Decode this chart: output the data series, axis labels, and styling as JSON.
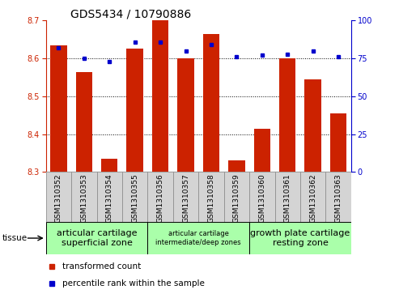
{
  "title": "GDS5434 / 10790886",
  "samples": [
    "GSM1310352",
    "GSM1310353",
    "GSM1310354",
    "GSM1310355",
    "GSM1310356",
    "GSM1310357",
    "GSM1310358",
    "GSM1310359",
    "GSM1310360",
    "GSM1310361",
    "GSM1310362",
    "GSM1310363"
  ],
  "transformed_counts": [
    8.635,
    8.565,
    8.335,
    8.625,
    8.7,
    8.6,
    8.665,
    8.33,
    8.415,
    8.6,
    8.545,
    8.455
  ],
  "percentile_ranks": [
    82,
    75,
    73,
    86,
    86,
    80,
    84,
    76,
    77,
    78,
    80,
    76
  ],
  "ylim_left": [
    8.3,
    8.7
  ],
  "ylim_right": [
    0,
    100
  ],
  "yticks_left": [
    8.3,
    8.4,
    8.5,
    8.6,
    8.7
  ],
  "yticks_right": [
    0,
    25,
    50,
    75,
    100
  ],
  "bar_color": "#cc2200",
  "dot_color": "#0000cc",
  "grid_dotted_at": [
    8.4,
    8.5,
    8.6
  ],
  "tissue_groups": [
    {
      "label": "articular cartilage\nsuperficial zone",
      "start": 0,
      "end": 4,
      "color": "#aaffaa",
      "fontsize": 8
    },
    {
      "label": "articular cartilage\nintermediate/deep zones",
      "start": 4,
      "end": 8,
      "color": "#aaffaa",
      "fontsize": 6
    },
    {
      "label": "growth plate cartilage\nresting zone",
      "start": 8,
      "end": 12,
      "color": "#aaffaa",
      "fontsize": 8
    }
  ],
  "tissue_label": "tissue",
  "legend_bar_label": "transformed count",
  "legend_dot_label": "percentile rank within the sample",
  "bar_bottom": 8.3,
  "sample_fontsize": 6.5,
  "title_fontsize": 10,
  "ytick_fontsize": 7,
  "legend_fontsize": 7.5
}
